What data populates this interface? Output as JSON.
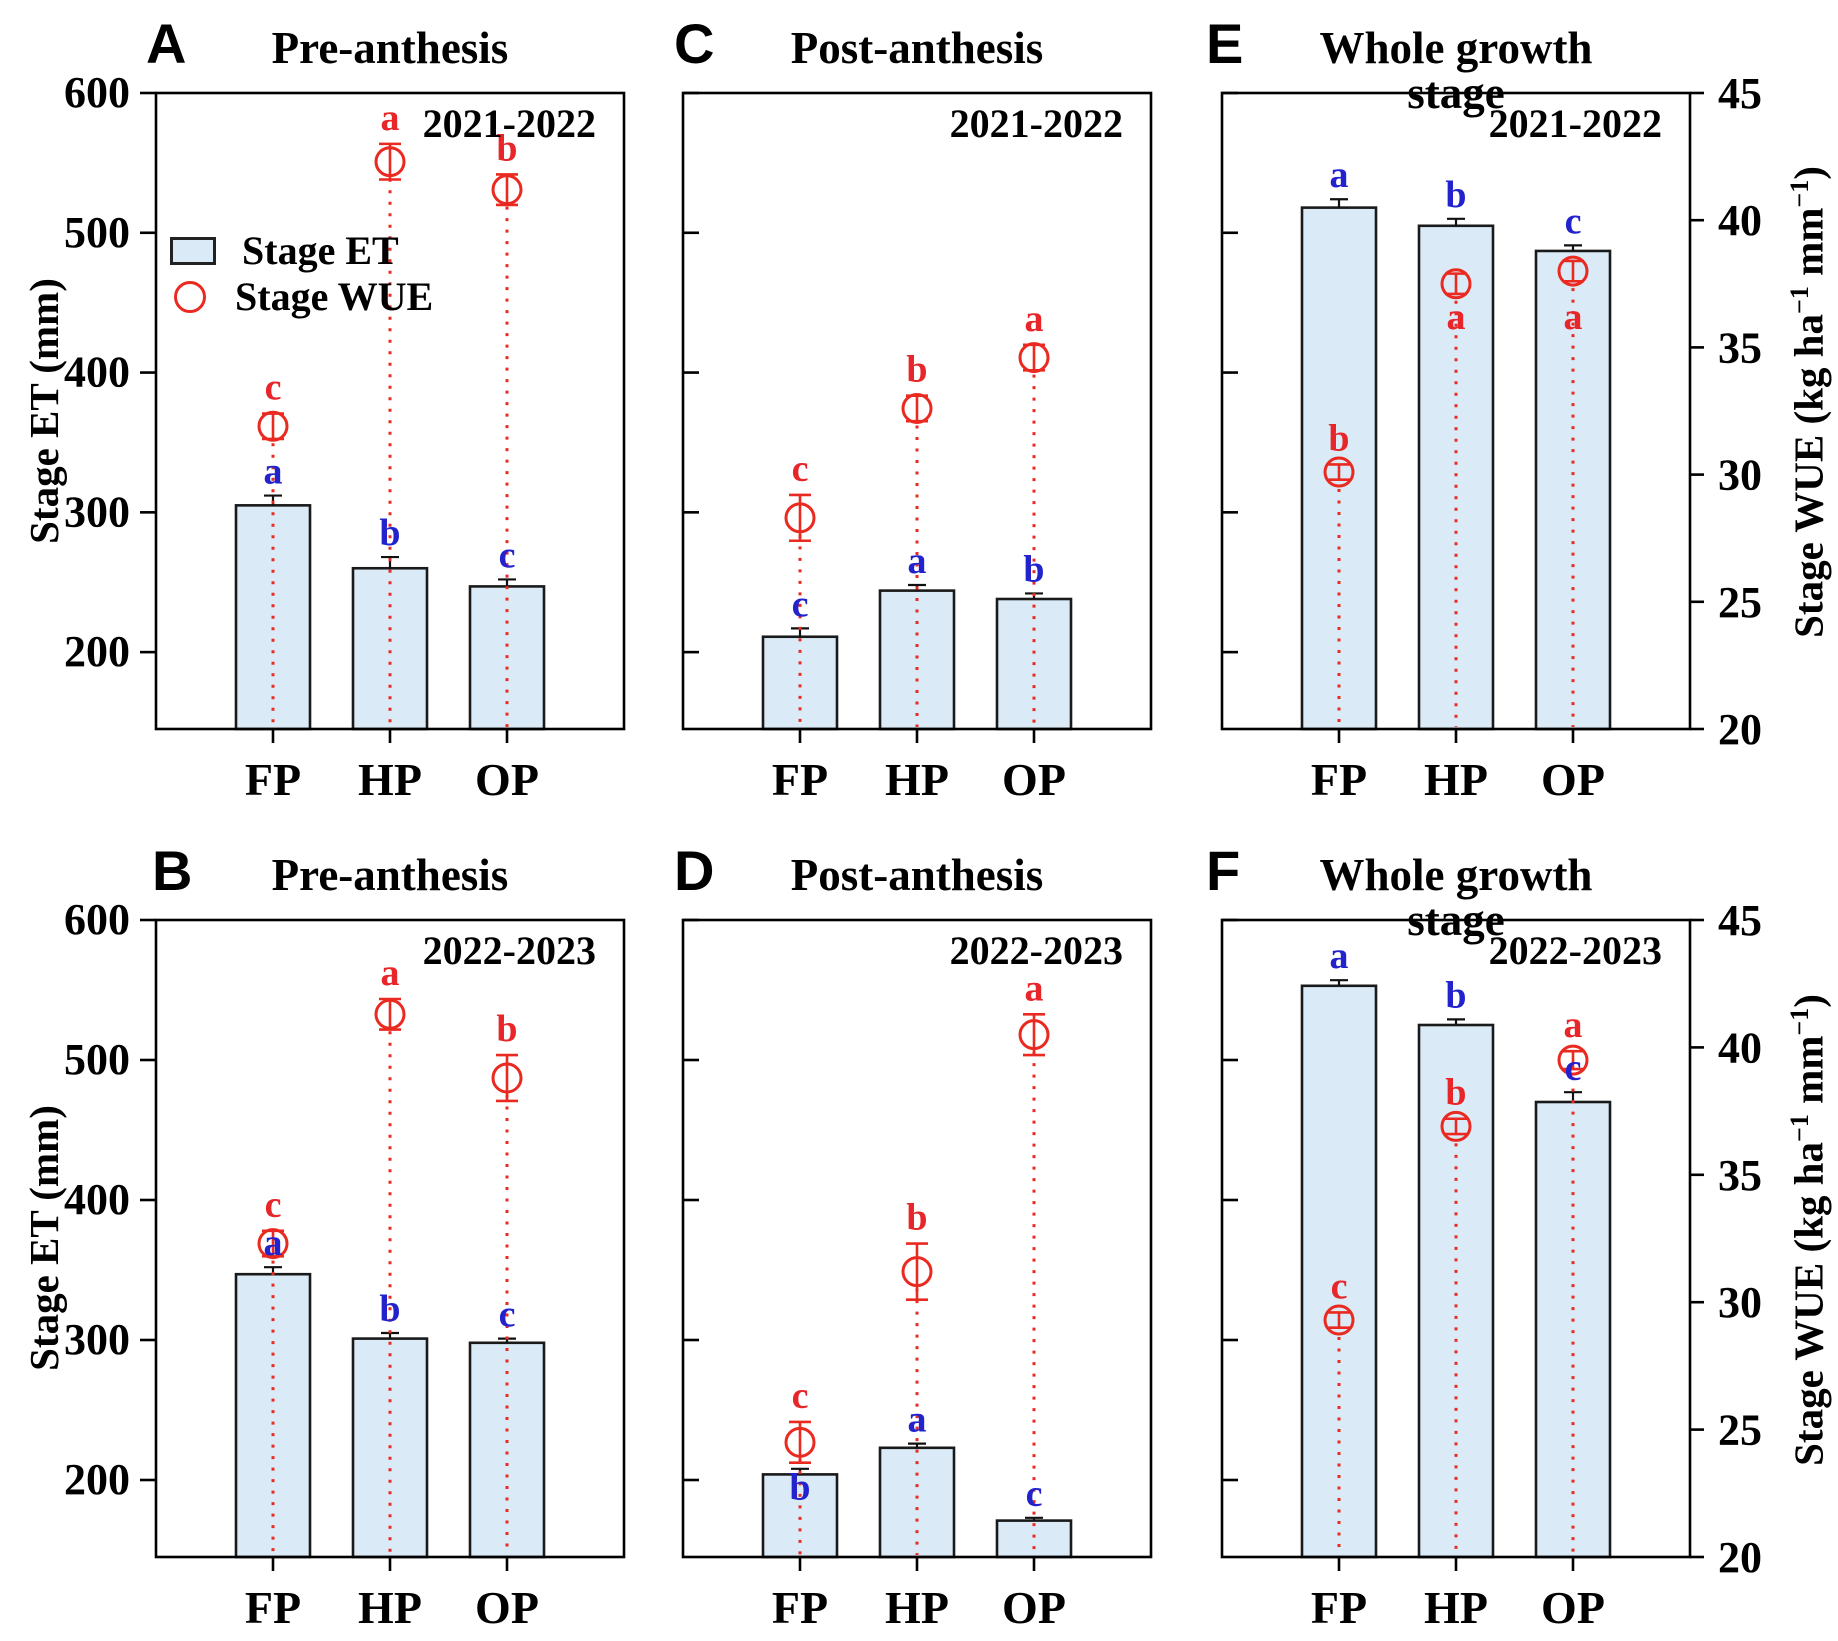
{
  "axes": {
    "et": {
      "title": "Stage ET (mm)",
      "ticks": [
        600,
        500,
        400,
        300,
        200
      ],
      "min": 145,
      "max": 600
    },
    "wue": {
      "title_parts": {
        "p1": "Stage WUE (kg ha",
        "s1": "−1",
        "p2": " mm",
        "s2": "−1",
        "p3": ")"
      },
      "ticks": [
        45,
        40,
        35,
        30,
        25,
        20
      ],
      "min": 20,
      "max": 45
    }
  },
  "legend": {
    "et_label": "Stage ET",
    "wue_label": "Stage WUE"
  },
  "categories": [
    "FP",
    "HP",
    "OP"
  ],
  "colors": {
    "bar_fill": "#daebf7",
    "bar_edge": "#1a1a1a",
    "red": "#ea2a20",
    "letter_blue": "#2323cd",
    "letter_red": "#e8262a",
    "black": "#000000"
  },
  "chart_data": {
    "type": "bar",
    "description": "Grouped panels: bars = Stage ET (mm, left axis), open red circles = Stage WUE (kg ha-1 mm-1, right axis), letters = significance groups",
    "categories": [
      "FP",
      "HP",
      "OP"
    ],
    "panels": [
      {
        "letter": "A",
        "title": "Pre-anthesis",
        "year": "2021-2022",
        "et": {
          "values": [
            305,
            260,
            247
          ],
          "errors": [
            7,
            8,
            5
          ],
          "letters": [
            "a",
            "b",
            "c"
          ],
          "letter_pos": [
            null,
            null,
            null
          ]
        },
        "wue": {
          "values": [
            31.9,
            42.3,
            41.2
          ],
          "errors": [
            0.5,
            0.7,
            0.6
          ],
          "letters": [
            "c",
            "a",
            "b"
          ],
          "letter_pos": [
            null,
            null,
            null
          ]
        }
      },
      {
        "letter": "C",
        "title": "Post-anthesis",
        "year": "2021-2022",
        "et": {
          "values": [
            211,
            244,
            238
          ],
          "errors": [
            6,
            4,
            4
          ],
          "letters": [
            "c",
            "a",
            "b"
          ],
          "letter_pos": [
            null,
            null,
            null
          ]
        },
        "wue": {
          "values": [
            28.3,
            32.6,
            34.6
          ],
          "errors": [
            0.9,
            0.5,
            0.5
          ],
          "letters": [
            "c",
            "b",
            "a"
          ],
          "letter_pos": [
            null,
            null,
            null
          ]
        }
      },
      {
        "letter": "E",
        "title": "Whole growth stage",
        "year": "2021-2022",
        "et": {
          "values": [
            518,
            505,
            487
          ],
          "errors": [
            6,
            5,
            4
          ],
          "letters": [
            "a",
            "b",
            "c"
          ],
          "letter_pos": [
            null,
            null,
            null
          ]
        },
        "wue": {
          "values": [
            30.1,
            37.5,
            38.0
          ],
          "errors": [
            0.3,
            0.4,
            0.4
          ],
          "letters": [
            "b",
            "a",
            "a"
          ],
          "letter_pos": [
            null,
            36.2,
            36.2
          ]
        }
      },
      {
        "letter": "B",
        "title": "Pre-anthesis",
        "year": "2022-2023",
        "et": {
          "values": [
            347,
            301,
            298
          ],
          "errors": [
            5,
            4,
            3
          ],
          "letters": [
            "a",
            "b",
            "c"
          ],
          "letter_pos": [
            null,
            null,
            null
          ]
        },
        "wue": {
          "values": [
            32.3,
            41.3,
            38.8
          ],
          "errors": [
            0.5,
            0.6,
            0.9
          ],
          "letters": [
            "c",
            "a",
            "b"
          ],
          "letter_pos": [
            null,
            null,
            null
          ]
        }
      },
      {
        "letter": "D",
        "title": "Post-anthesis",
        "year": "2022-2023",
        "et": {
          "values": [
            204,
            223,
            171
          ],
          "errors": [
            4,
            3,
            2
          ],
          "letters": [
            "b",
            "a",
            "c"
          ],
          "letter_pos": [
            186,
            null,
            null
          ]
        },
        "wue": {
          "values": [
            24.5,
            31.2,
            40.5
          ],
          "errors": [
            0.8,
            1.1,
            0.8
          ],
          "letters": [
            "c",
            "b",
            "a"
          ],
          "letter_pos": [
            null,
            null,
            null
          ]
        }
      },
      {
        "letter": "F",
        "title": "Whole growth stage",
        "year": "2022-2023",
        "et": {
          "values": [
            553,
            525,
            470
          ],
          "errors": [
            4,
            4,
            7
          ],
          "letters": [
            "a",
            "b",
            "c"
          ],
          "letter_pos": [
            null,
            null,
            null
          ]
        },
        "wue": {
          "values": [
            29.3,
            36.9,
            39.5
          ],
          "errors": [
            0.3,
            0.3,
            0.35
          ],
          "letters": [
            "c",
            "b",
            "a"
          ],
          "letter_pos": [
            null,
            null,
            null
          ]
        }
      }
    ]
  }
}
